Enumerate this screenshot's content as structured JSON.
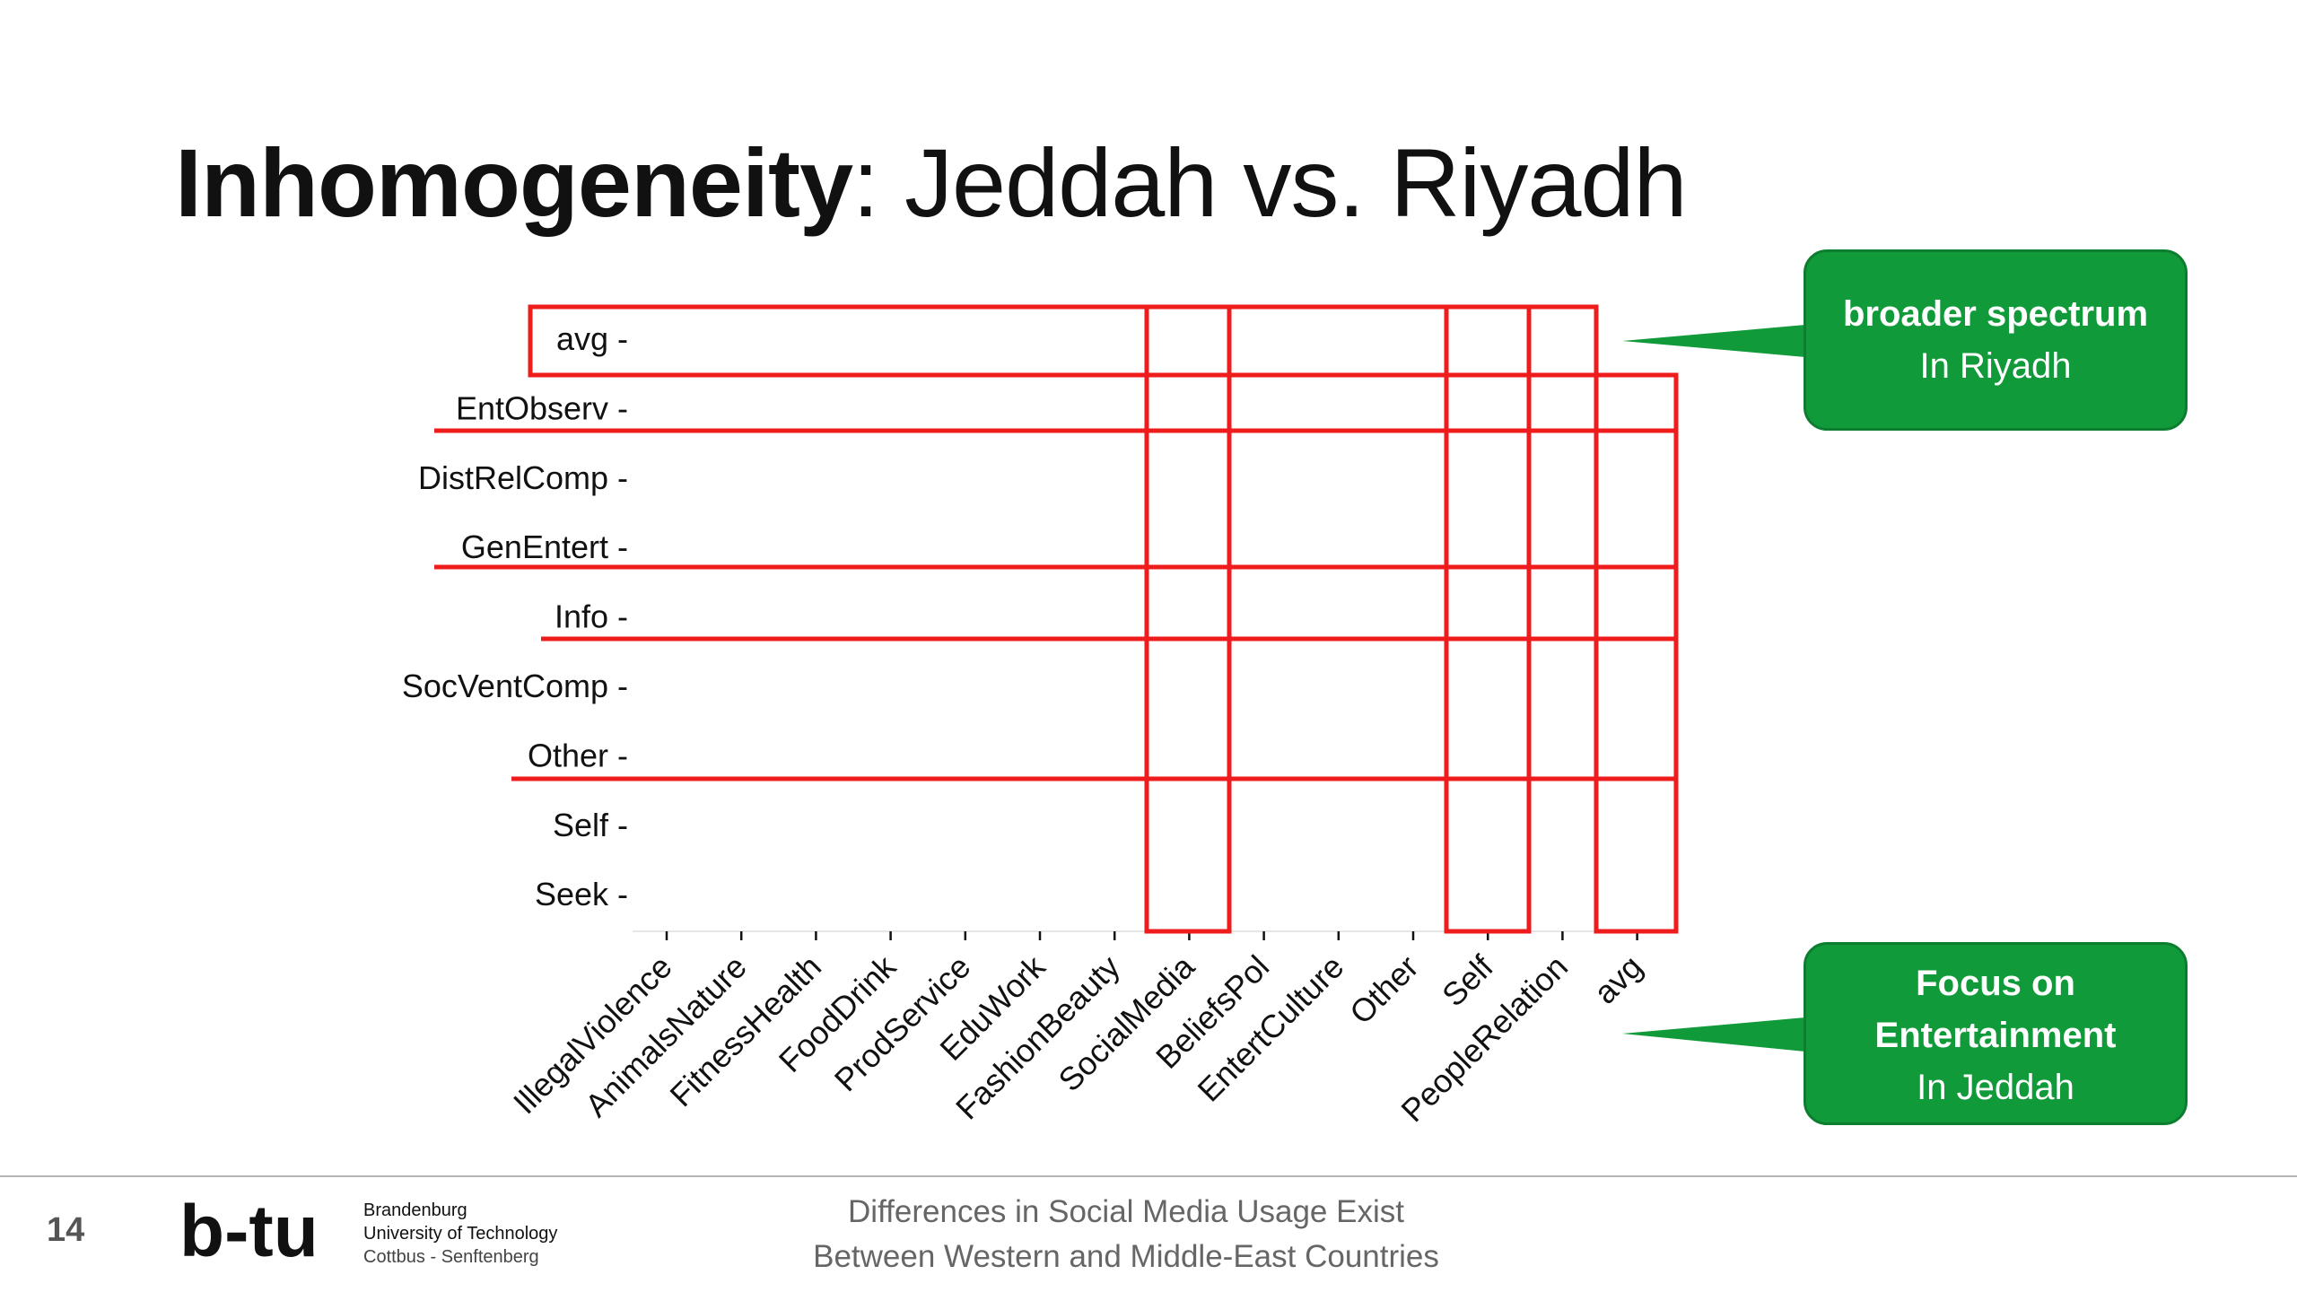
{
  "slide": {
    "title_bold": "Inhomogeneity",
    "title_rest": ": Jeddah vs. Riyadh",
    "page_number": "14"
  },
  "chart_data": {
    "type": "heatmap",
    "title": "",
    "xlabel": "",
    "ylabel": "",
    "y_categories": [
      "avg",
      "EntObserv",
      "DistRelComp",
      "GenEntert",
      "Info",
      "SocVentComp",
      "Other",
      "Self",
      "Seek"
    ],
    "x_categories": [
      "IllegalViolence",
      "AnimalsNature",
      "FitnessHealth",
      "FoodDrink",
      "ProdService",
      "EduWork",
      "FashionBeauty",
      "SocialMedia",
      "BeliefsPol",
      "EntertCulture",
      "Other",
      "Self",
      "PeopleRelation",
      "avg"
    ],
    "highlight_color": "#ee1c1c",
    "highlights": {
      "horizontal": [
        {
          "rows": [
            "avg"
          ]
        },
        {
          "rows": [
            "EntObserv",
            "DistRelComp",
            "GenEntert"
          ]
        },
        {
          "rows": [
            "Info",
            "SocVentComp",
            "Other"
          ]
        }
      ],
      "vertical": [
        {
          "column": "SocialMedia"
        },
        {
          "column": "Self"
        },
        {
          "column": "avg"
        }
      ]
    }
  },
  "callouts": {
    "top": {
      "line1": "broader spectrum",
      "line2": "In Riyadh"
    },
    "bottom": {
      "line1": "Focus on",
      "line2": "Entertainment",
      "line3": "In Jeddah"
    }
  },
  "colors": {
    "callout_fill": "#119a3a",
    "highlight": "#ee1c1c"
  },
  "footer": {
    "university_line1": "Brandenburg",
    "university_line2": "University of Technology",
    "university_line3": "Cottbus - Senftenberg",
    "text_line1": "Differences in Social Media Usage Exist",
    "text_line2": "Between Western and Middle-East Countries",
    "logo_text": "b-tu"
  }
}
